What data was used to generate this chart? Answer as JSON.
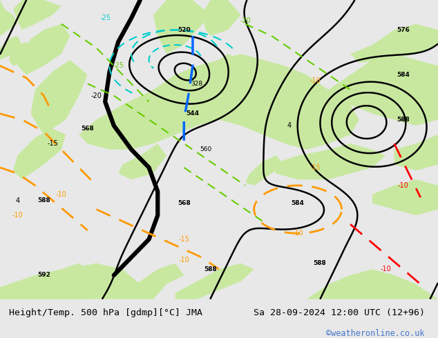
{
  "title_left": "Height/Temp. 500 hPa [gdmp][°C] JMA",
  "title_right": "Sa 28-09-2024 12:00 UTC (12+96)",
  "watermark": "©weatheronline.co.uk",
  "bg_color": "#e8e8e8",
  "land_green": "#c8e8a0",
  "sea_gray": "#c8c8c8",
  "text_color": "#000000",
  "watermark_color": "#4477cc",
  "figsize": [
    6.34,
    4.9
  ],
  "dpi": 100
}
